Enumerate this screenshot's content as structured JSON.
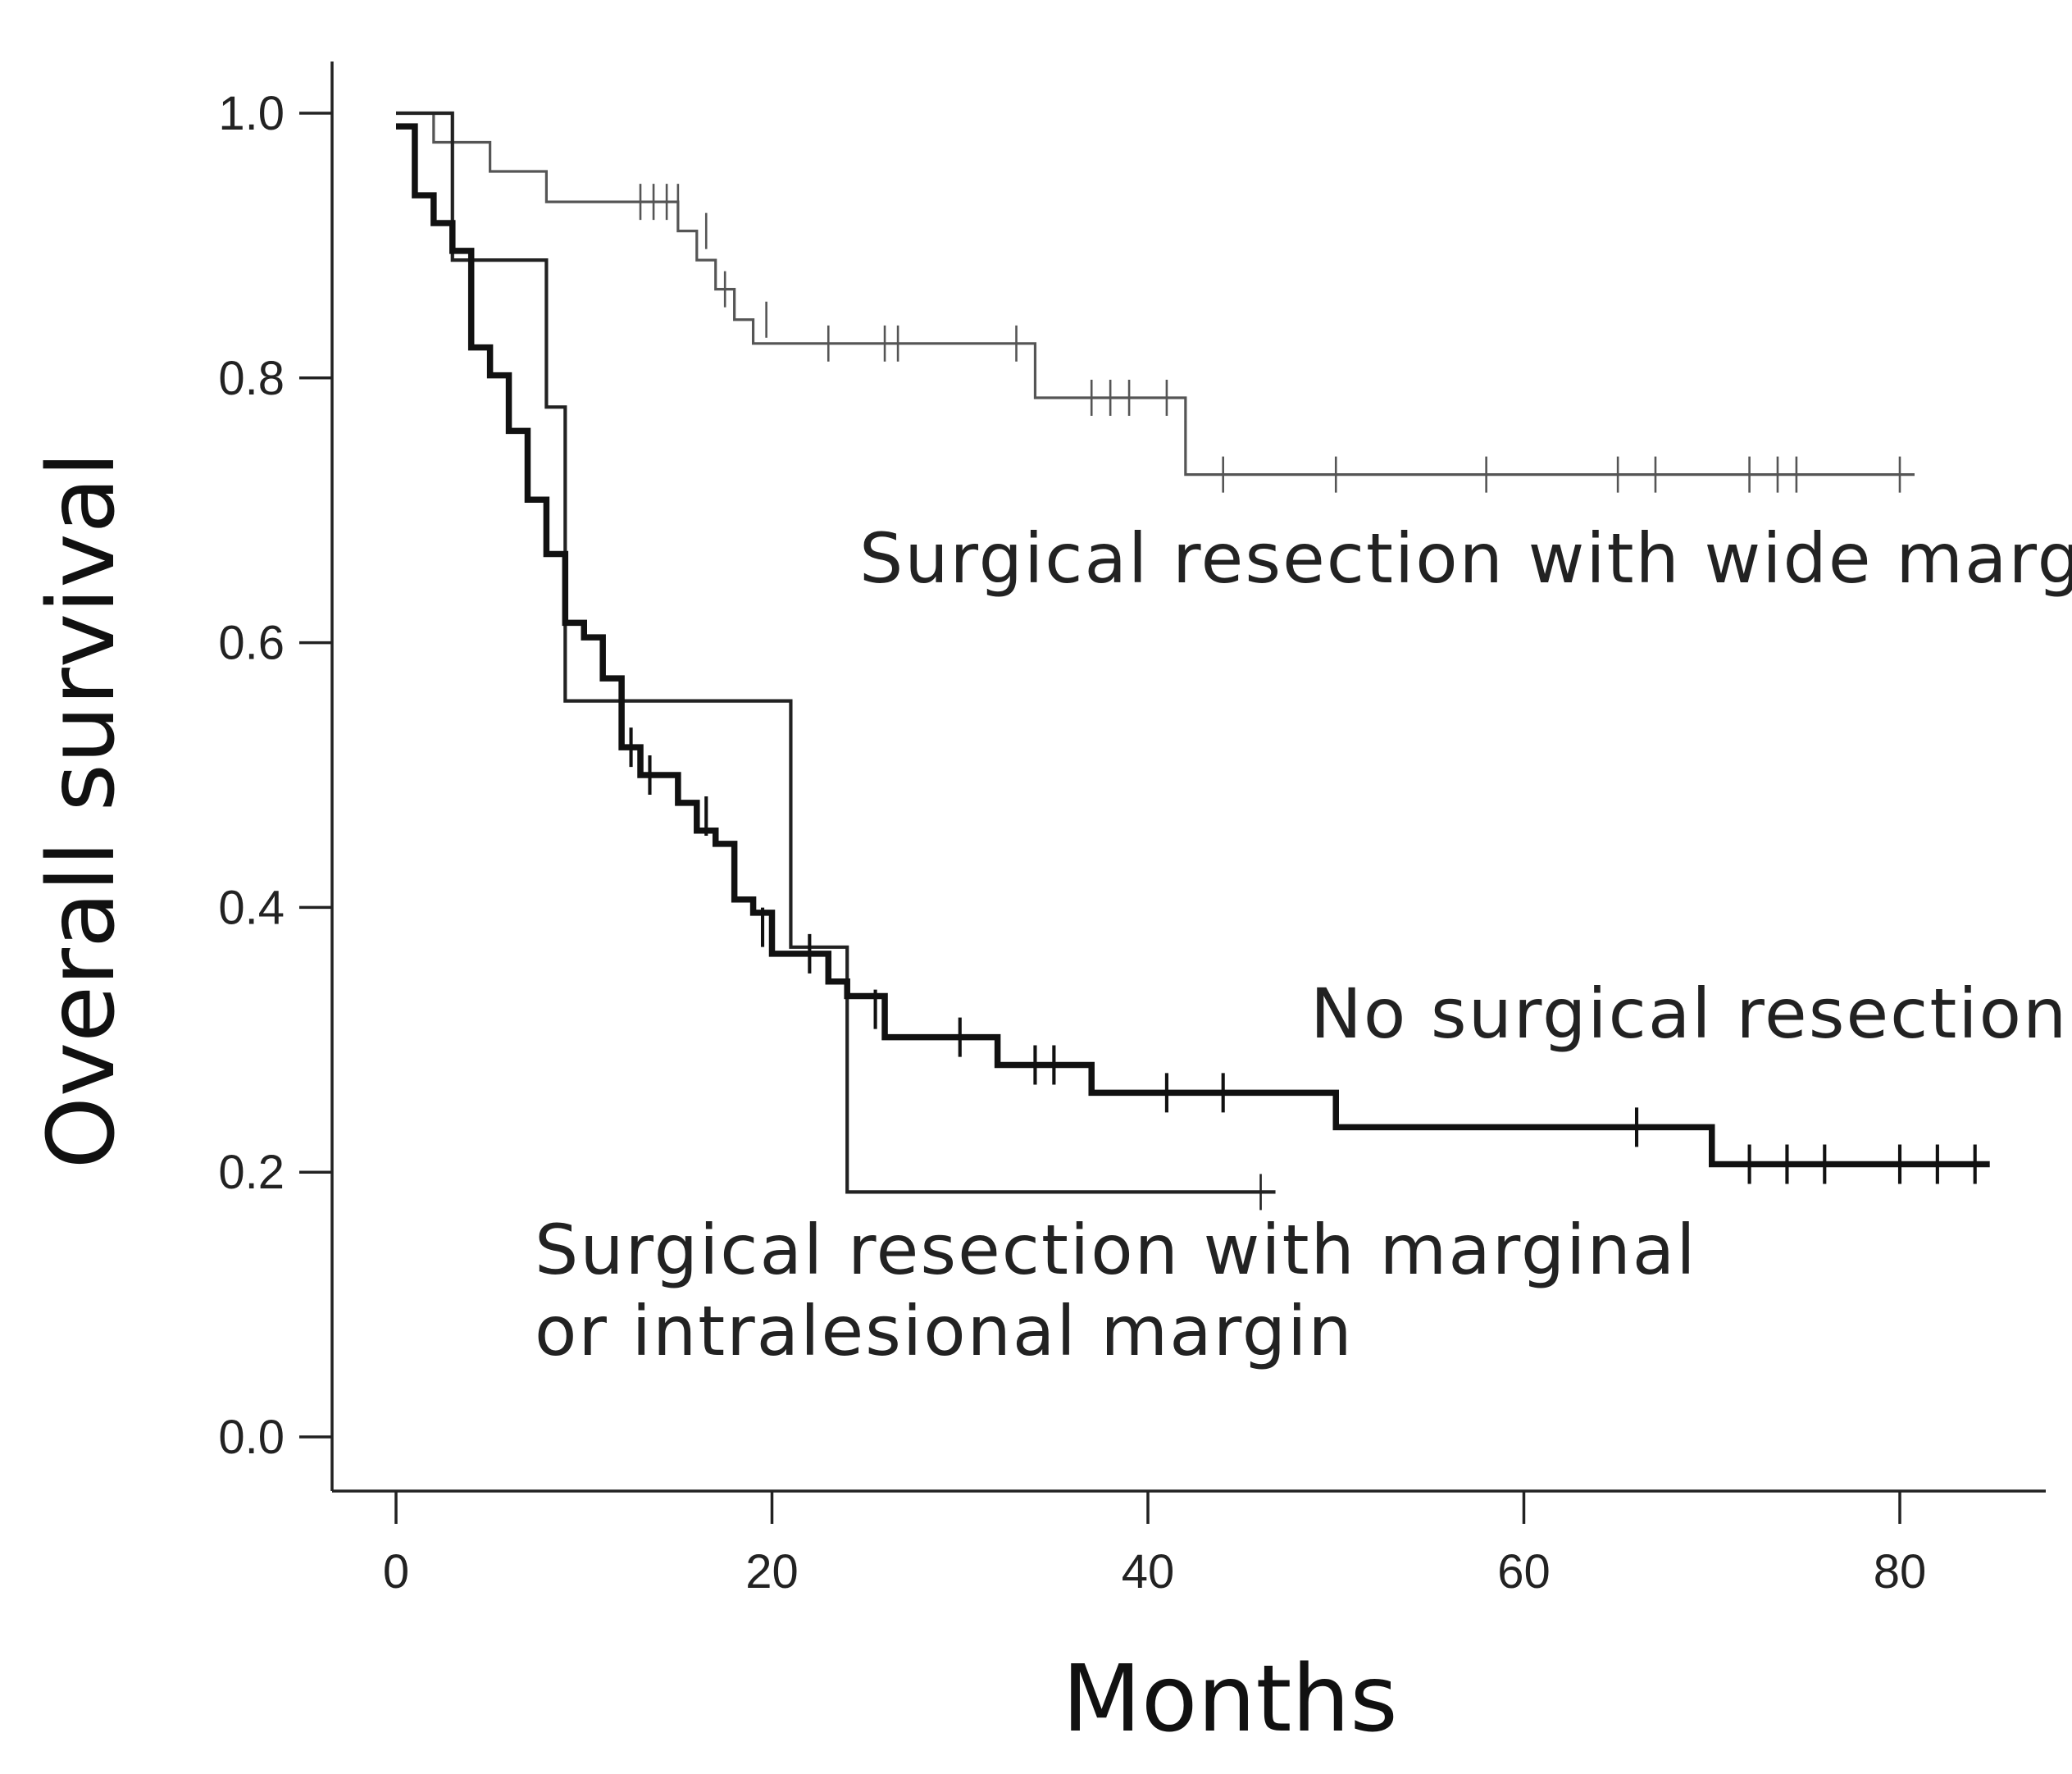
{
  "chart_data": {
    "type": "line",
    "subtype": "kaplan-meier",
    "title": "",
    "xlabel": "Months",
    "ylabel": "Overall survival",
    "xlim": [
      -3,
      87
    ],
    "ylim": [
      0,
      1
    ],
    "xticks": [
      0,
      20,
      40,
      60,
      80
    ],
    "xtick_labels": [
      "0",
      "20",
      "40",
      "60",
      "80"
    ],
    "yticks": [
      0,
      0.2,
      0.4,
      0.6,
      0.8,
      1.0
    ],
    "ytick_labels": [
      "0.0",
      "0.2",
      "0.4",
      "0.6",
      "0.8",
      "1.0"
    ],
    "grid": false,
    "series": [
      {
        "name": "Surgical resection with wide margin",
        "color": "#555555",
        "weight": "thin",
        "steps": [
          [
            0,
            1.0
          ],
          [
            2,
            0.978
          ],
          [
            5,
            0.956
          ],
          [
            8,
            0.933
          ],
          [
            15,
            0.911
          ],
          [
            16,
            0.889
          ],
          [
            17,
            0.867
          ],
          [
            18,
            0.844
          ],
          [
            19,
            0.826
          ],
          [
            34,
            0.785
          ],
          [
            42,
            0.727
          ],
          [
            80,
            0.727
          ]
        ],
        "censored": [
          [
            13,
            0.933
          ],
          [
            13.7,
            0.933
          ],
          [
            14.4,
            0.933
          ],
          [
            15,
            0.933
          ],
          [
            16.5,
            0.911
          ],
          [
            17.5,
            0.867
          ],
          [
            19.7,
            0.844
          ],
          [
            23,
            0.826
          ],
          [
            26,
            0.826
          ],
          [
            26.7,
            0.826
          ],
          [
            33,
            0.826
          ],
          [
            37,
            0.785
          ],
          [
            38,
            0.785
          ],
          [
            39,
            0.785
          ],
          [
            41,
            0.785
          ],
          [
            42,
            0.754
          ],
          [
            44,
            0.727
          ],
          [
            50,
            0.727
          ],
          [
            58,
            0.727
          ],
          [
            65,
            0.727
          ],
          [
            67,
            0.727
          ],
          [
            72,
            0.727
          ],
          [
            73.5,
            0.727
          ],
          [
            74.5,
            0.727
          ],
          [
            80,
            0.727
          ]
        ]
      },
      {
        "name": "Surgical resection with marginal or intralesional margin",
        "color": "#222222",
        "weight": "medium",
        "steps": [
          [
            0,
            1.0
          ],
          [
            3,
            0.889
          ],
          [
            8,
            0.778
          ],
          [
            9,
            0.556
          ],
          [
            21,
            0.37
          ],
          [
            24,
            0.185
          ],
          [
            46,
            0.185
          ]
        ],
        "censored": [
          [
            46,
            0.185
          ]
        ]
      },
      {
        "name": "No surgical resection",
        "color": "#111111",
        "weight": "thick",
        "steps": [
          [
            0,
            0.99
          ],
          [
            1,
            0.938
          ],
          [
            2,
            0.917
          ],
          [
            3,
            0.896
          ],
          [
            4,
            0.823
          ],
          [
            5,
            0.802
          ],
          [
            6,
            0.76
          ],
          [
            7,
            0.708
          ],
          [
            8,
            0.667
          ],
          [
            9,
            0.615
          ],
          [
            10,
            0.604
          ],
          [
            11,
            0.573
          ],
          [
            12,
            0.521
          ],
          [
            13,
            0.5
          ],
          [
            15,
            0.479
          ],
          [
            16,
            0.458
          ],
          [
            17,
            0.448
          ],
          [
            18,
            0.406
          ],
          [
            19,
            0.396
          ],
          [
            20,
            0.365
          ],
          [
            23,
            0.344
          ],
          [
            24,
            0.333
          ],
          [
            26,
            0.302
          ],
          [
            32,
            0.281
          ],
          [
            37,
            0.26
          ],
          [
            50,
            0.234
          ],
          [
            70,
            0.206
          ],
          [
            84,
            0.206
          ]
        ],
        "censored": [
          [
            12.5,
            0.521
          ],
          [
            13.5,
            0.5
          ],
          [
            16.5,
            0.469
          ],
          [
            18,
            0.427
          ],
          [
            19.5,
            0.385
          ],
          [
            22,
            0.365
          ],
          [
            25.5,
            0.323
          ],
          [
            30,
            0.302
          ],
          [
            34,
            0.281
          ],
          [
            35,
            0.281
          ],
          [
            41,
            0.26
          ],
          [
            44,
            0.26
          ],
          [
            66,
            0.234
          ],
          [
            72,
            0.206
          ],
          [
            74,
            0.206
          ],
          [
            76,
            0.206
          ],
          [
            80,
            0.206
          ],
          [
            82,
            0.206
          ],
          [
            84,
            0.206
          ]
        ]
      }
    ],
    "annotations": [
      {
        "name": "wide-margin",
        "text": "Surgical resection with wide margin"
      },
      {
        "name": "no-surgery",
        "text": "No surgical resection"
      },
      {
        "name": "marginal-1",
        "text": "Surgical resection with marginal"
      },
      {
        "name": "marginal-2",
        "text": "or intralesional margin"
      }
    ]
  }
}
